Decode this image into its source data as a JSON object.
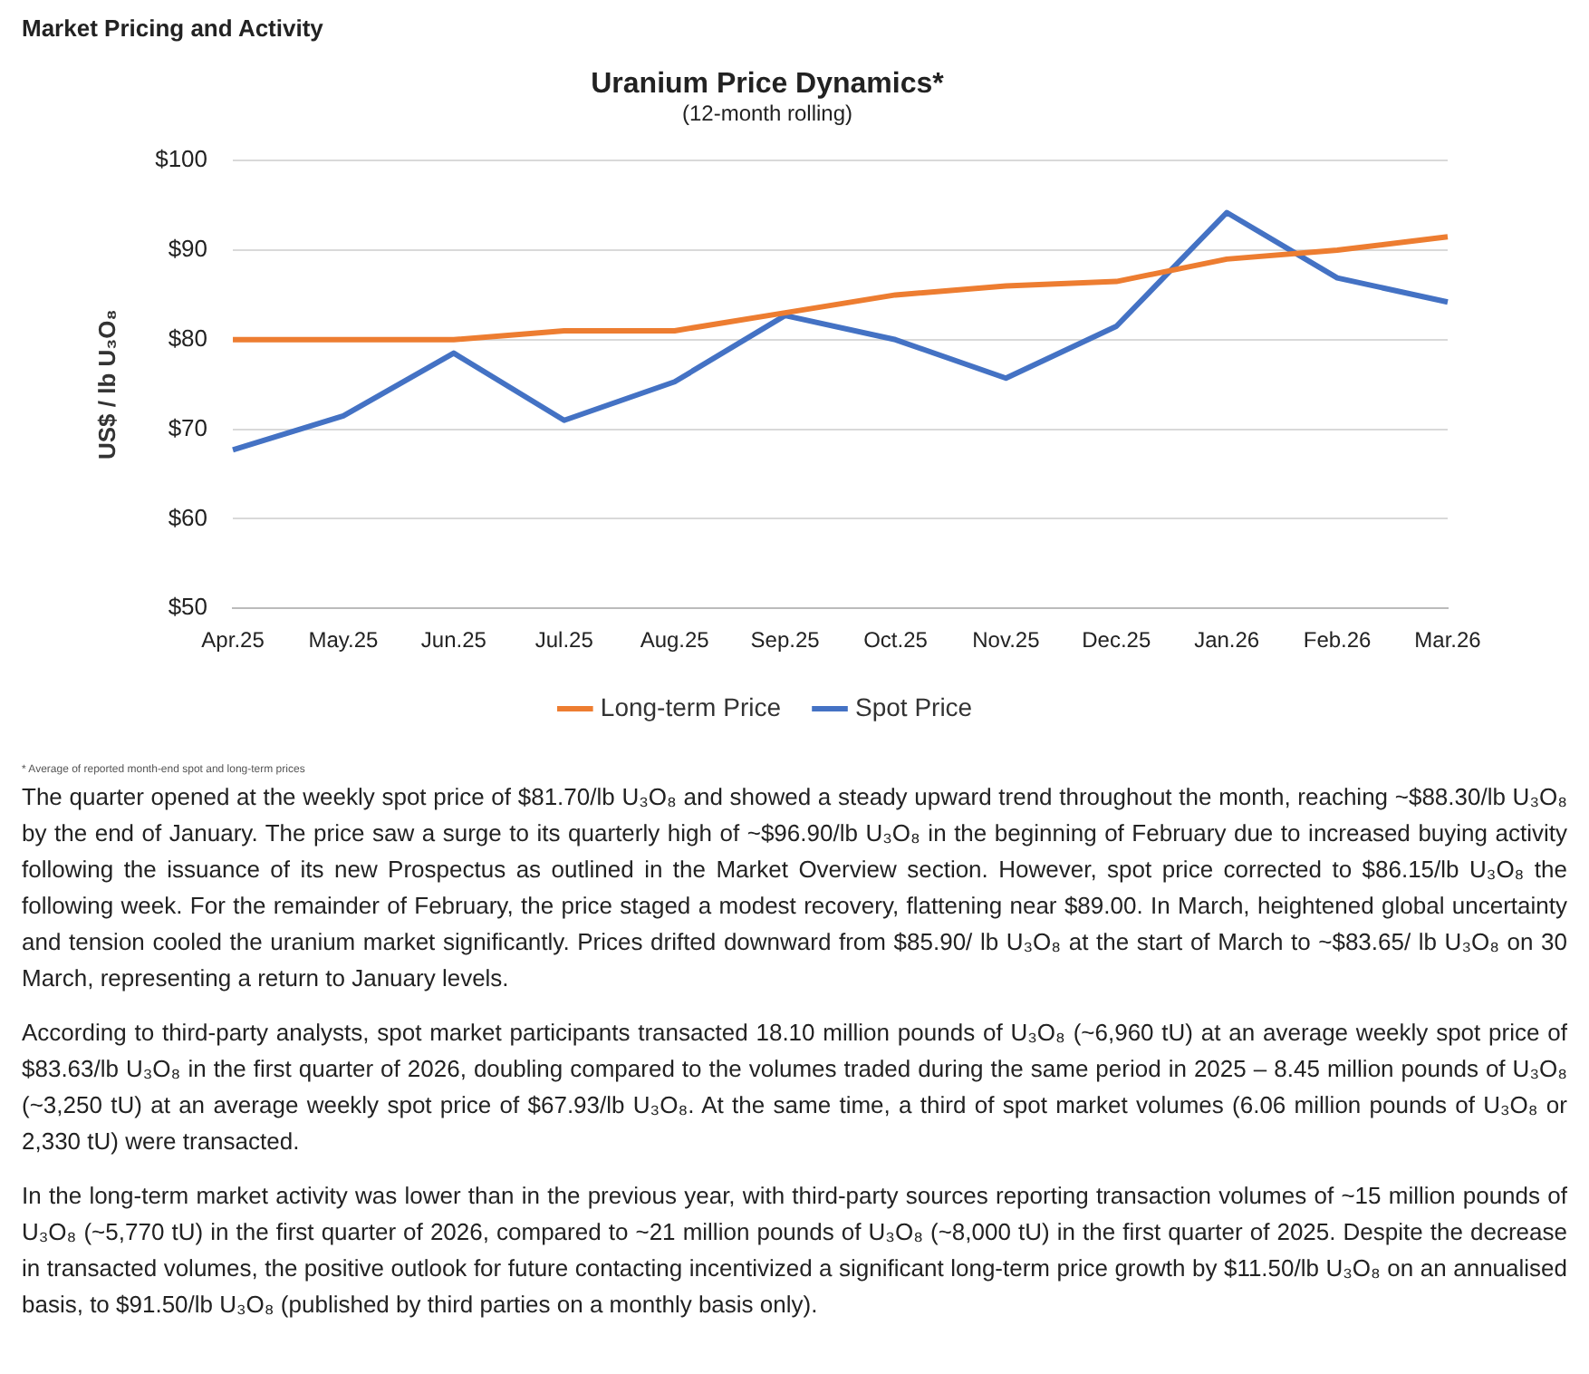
{
  "chart_data": {
    "type": "line",
    "title": "Uranium Price Dynamics*",
    "subtitle": "(12-month rolling)",
    "ylabel": "US$ / lb U₃O₈",
    "categories": [
      "Apr.25",
      "May.25",
      "Jun.25",
      "Jul.25",
      "Aug.25",
      "Sep.25",
      "Oct.25",
      "Nov.25",
      "Dec.25",
      "Jan.26",
      "Feb.26",
      "Mar.26"
    ],
    "series": [
      {
        "name": "Long-term Price",
        "color": "#ed7d31",
        "values": [
          80,
          80,
          80,
          81,
          81,
          83,
          85,
          86,
          86.5,
          89,
          90,
          91.5
        ]
      },
      {
        "name": "Spot Price",
        "color": "#4472c4",
        "values": [
          67.7,
          71.5,
          78.5,
          71,
          75.3,
          82.7,
          80,
          75.7,
          81.5,
          94.2,
          86.9,
          84.2
        ]
      }
    ],
    "ylim": [
      50,
      100
    ],
    "yticks": [
      {
        "value": 50,
        "label": "$50"
      },
      {
        "value": 60,
        "label": "$60"
      },
      {
        "value": 70,
        "label": "$70"
      },
      {
        "value": 80,
        "label": "$80"
      },
      {
        "value": 90,
        "label": "$90"
      },
      {
        "value": 100,
        "label": "$100"
      }
    ],
    "grid": "y",
    "legend": "bottom",
    "marker": "none",
    "line_style": "solid",
    "annotations": [
      "Market Pricing and Activity",
      "* Average of reported month-end spot and long-term prices",
      "The quarter opened at the weekly spot price of $81.70/lb U₃O₈ and showed a steady upward trend throughout the month, reaching ~$88.30/lb U₃O₈ by the end of January. The price saw a surge to its quarterly high of ~$96.90/lb U₃O₈ in the beginning of February due to increased buying activity following the issuance of its new Prospectus as outlined in the Market Overview section. However, spot price corrected to $86.15/lb U₃O₈ the following week. For the remainder of February, the price staged a modest recovery, flattening near $89.00. In March, heightened global uncertainty and tension cooled the uranium market significantly. Prices drifted downward from $85.90/ lb U₃O₈ at the start of March to ~$83.65/ lb U₃O₈ on 30 March, representing a return to January levels.",
      "According to third-party analysts, spot market participants transacted 18.10 million pounds of U₃O₈ (~6,960 tU) at an average weekly spot price of $83.63/lb U₃O₈ in the first quarter of 2026, doubling compared to the volumes traded during the same period in 2025 – 8.45 million pounds of U₃O₈ (~3,250 tU) at an average weekly spot price of $67.93/lb U₃O₈. At the same time, a third of spot market volumes (6.06 million pounds of U₃O₈ or 2,330 tU) were transacted.",
      "In the long-term market activity was lower than in the previous year, with third-party sources reporting transaction volumes of ~15 million pounds of U₃O₈ (~5,770 tU) in the first quarter of 2026, compared to ~21 million pounds of U₃O₈ (~8,000 tU) in the first quarter of 2025. Despite the decrease in transacted volumes, the positive outlook for future contacting incentivized a significant long-term price growth by $11.50/lb U₃O₈ on an annualised basis, to $91.50/lb U₃O₈ (published by third parties on a monthly basis only)."
    ]
  }
}
